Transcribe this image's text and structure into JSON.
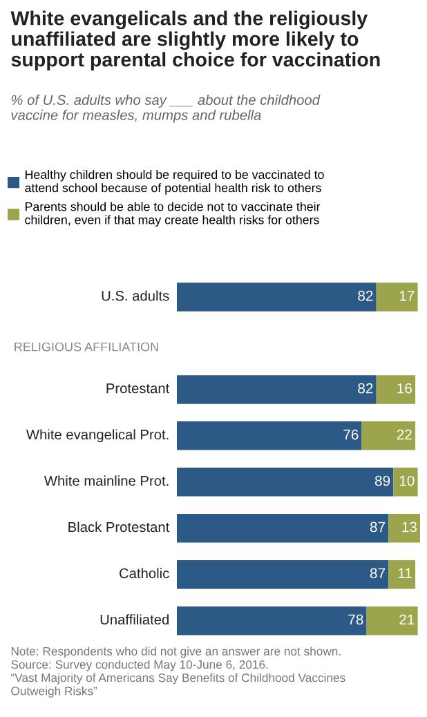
{
  "chart_data": {
    "type": "bar",
    "orientation": "horizontal",
    "stacked": true,
    "title": "White evangelicals and the religiously\nunaffiliated are slightly more likely to\nsupport parental choice for vaccination",
    "subtitle": "% of U.S. adults who say ___ about the childhood\nvaccine for measles, mumps and rubella",
    "categories": [
      "U.S. adults",
      null,
      "Protestant",
      "White evangelical Prot.",
      "White mainline Prot.",
      "Black Protestant",
      "Catholic",
      "Unaffiliated"
    ],
    "series": [
      {
        "name": "Healthy children should be required to be vaccinated to\nattend school because of potential health risk to others",
        "color": "#2c5985",
        "values": [
          82,
          null,
          82,
          76,
          89,
          87,
          87,
          78
        ]
      },
      {
        "name": "Parents should be able to decide not to vaccinate their\nchildren, even if that may create health risks for others",
        "color": "#9da54c",
        "values": [
          17,
          null,
          16,
          22,
          10,
          13,
          11,
          21
        ]
      }
    ],
    "xlim": [
      0,
      100
    ],
    "data_labels": true,
    "legend": "top",
    "tick_labels": "y",
    "grid": false,
    "annotations": [
      "RELIGIOUS AFFILIATION",
      "Note: Respondents who did not give an answer are not shown.\nSource: Survey conducted May 10-June 6, 2016.\n“Vast Majority of Americans Say Benefits of Childhood Vaccines\nOutweigh Risks”"
    ]
  }
}
